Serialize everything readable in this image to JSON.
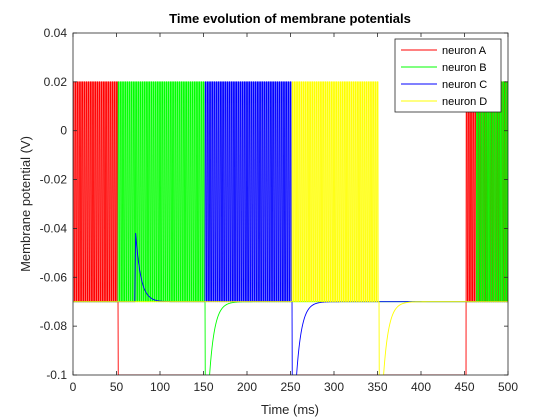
{
  "chart_data": {
    "type": "line",
    "title": "Time evolution of membrane potentials",
    "xlabel": "Time (ms)",
    "ylabel": "Membrane potential (V)",
    "xlim": [
      0,
      500
    ],
    "ylim": [
      -0.1,
      0.04
    ],
    "x_ticks": [
      0,
      50,
      100,
      150,
      200,
      250,
      300,
      350,
      400,
      450,
      500
    ],
    "x_tick_labels": [
      "0",
      "50",
      "100",
      "150",
      "200",
      "250",
      "300",
      "350",
      "400",
      "450",
      "500"
    ],
    "y_ticks": [
      -0.1,
      -0.08,
      -0.06,
      -0.04,
      -0.02,
      0,
      0.02,
      0.04
    ],
    "y_tick_labels": [
      "-0.1",
      "-0.08",
      "-0.06",
      "-0.04",
      "-0.02",
      "0",
      "0.02",
      "0.04"
    ],
    "grid": false,
    "legend_position": "top-right",
    "model": {
      "resting_potential": -0.07,
      "spike_peak": 0.02,
      "hyperpolarized_floor": -0.1,
      "spike_period_ms": 2.5,
      "recovery_tau_ms": 6
    },
    "series": [
      {
        "name": "neuron A",
        "color": "#ff0000",
        "bursts": [
          [
            0,
            52
          ],
          [
            452,
            500
          ]
        ],
        "hyperpolarization_onsets": [
          52
        ],
        "recovery_starts": [
          457
        ],
        "subthreshold_bumps": []
      },
      {
        "name": "neuron B",
        "color": "#00ff00",
        "bursts": [
          [
            52,
            152
          ],
          [
            464,
            500
          ]
        ],
        "hyperpolarization_onsets": [
          152
        ],
        "recovery_starts": [
          157
        ],
        "subthreshold_bumps": [
          {
            "t": 53,
            "v": -0.058
          }
        ]
      },
      {
        "name": "neuron C",
        "color": "#0000ff",
        "bursts": [
          [
            152,
            252
          ]
        ],
        "hyperpolarization_onsets": [
          252
        ],
        "recovery_starts": [
          257
        ],
        "subthreshold_bumps": [
          {
            "t": 72,
            "v": -0.042
          }
        ]
      },
      {
        "name": "neuron D",
        "color": "#ffff00",
        "bursts": [
          [
            252,
            352
          ]
        ],
        "hyperpolarization_onsets": [
          352
        ],
        "recovery_starts": [
          357
        ],
        "subthreshold_bumps": []
      }
    ]
  }
}
